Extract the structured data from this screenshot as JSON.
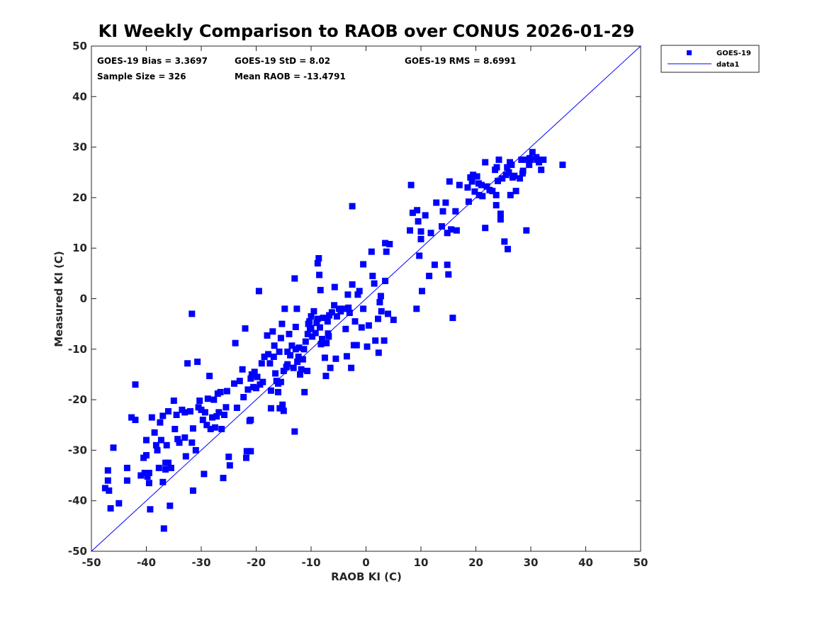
{
  "chart_data": {
    "type": "scatter",
    "title": "KI Weekly Comparison to RAOB over CONUS 2026-01-29",
    "xlabel": "RAOB KI (C)",
    "ylabel": "Measured KI (C)",
    "xlim": [
      -50,
      50
    ],
    "ylim": [
      -50,
      50
    ],
    "xticks": [
      "-50",
      "-40",
      "-30",
      "-20",
      "-10",
      "0",
      "10",
      "20",
      "30",
      "40",
      "50"
    ],
    "yticks": [
      "-50",
      "-40",
      "-30",
      "-20",
      "-10",
      "0",
      "10",
      "20",
      "30",
      "40",
      "50"
    ],
    "grid": false,
    "legend_position": "outside-top-right",
    "stats": {
      "bias": "GOES-19 Bias = 3.3697",
      "std": "GOES-19 StD = 8.02",
      "rms": "GOES-19 RMS = 8.6991",
      "sample_size": "Sample Size = 326",
      "mean_raob": "Mean RAOB = -13.4791"
    },
    "series": [
      {
        "name": "GOES-19",
        "type": "scatter",
        "marker": "square",
        "color": "#0000ff",
        "points": [
          [
            -47.5,
            -37.5
          ],
          [
            -47,
            -34
          ],
          [
            -47,
            -36
          ],
          [
            -46.8,
            -38
          ],
          [
            -46.5,
            -41.5
          ],
          [
            -46,
            -29.5
          ],
          [
            -45,
            -40.5
          ],
          [
            -43.5,
            -33.5
          ],
          [
            -43.5,
            -36
          ],
          [
            -42.7,
            -23.5
          ],
          [
            -42,
            -24
          ],
          [
            -42,
            -17
          ],
          [
            -41,
            -35
          ],
          [
            -40.5,
            -31.5
          ],
          [
            -40.3,
            -34.5
          ],
          [
            -40,
            -31
          ],
          [
            -40,
            -28
          ],
          [
            -39.8,
            -35.2
          ],
          [
            -39.5,
            -36.5
          ],
          [
            -39.5,
            -34.5
          ],
          [
            -39.3,
            -41.7
          ],
          [
            -39,
            -23.5
          ],
          [
            -38.5,
            -26.5
          ],
          [
            -38.2,
            -29
          ],
          [
            -38,
            -30
          ],
          [
            -37.7,
            -33.5
          ],
          [
            -37.5,
            -24.5
          ],
          [
            -37.3,
            -28
          ],
          [
            -37,
            -23.2
          ],
          [
            -37,
            -36.3
          ],
          [
            -36.8,
            -45.5
          ],
          [
            -36.5,
            -32.5
          ],
          [
            -36.5,
            -33.8
          ],
          [
            -36.3,
            -29
          ],
          [
            -36,
            -32.5
          ],
          [
            -36,
            -22.3
          ],
          [
            -35.7,
            -41
          ],
          [
            -35.5,
            -33.5
          ],
          [
            -35,
            -20.2
          ],
          [
            -34.8,
            -25.8
          ],
          [
            -34.5,
            -23
          ],
          [
            -34.3,
            -27.8
          ],
          [
            -34,
            -28.5
          ],
          [
            -33.5,
            -22
          ],
          [
            -33,
            -22.5
          ],
          [
            -33,
            -27.5
          ],
          [
            -32.8,
            -31.2
          ],
          [
            -32.5,
            -12.8
          ],
          [
            -32,
            -22.3
          ],
          [
            -31.7,
            -3
          ],
          [
            -31.7,
            -28.5
          ],
          [
            -31.5,
            -25.7
          ],
          [
            -31.5,
            -38
          ],
          [
            -31,
            -30
          ],
          [
            -30.7,
            -12.5
          ],
          [
            -30.5,
            -21.5
          ],
          [
            -30.3,
            -20.2
          ],
          [
            -30,
            -22
          ],
          [
            -29.7,
            -24
          ],
          [
            -29.5,
            -34.7
          ],
          [
            -29.3,
            -22.5
          ],
          [
            -29,
            -25
          ],
          [
            -28.8,
            -19.8
          ],
          [
            -28.5,
            -15.3
          ],
          [
            -28.3,
            -25.8
          ],
          [
            -28,
            -23.5
          ],
          [
            -27.7,
            -20
          ],
          [
            -27.5,
            -25.5
          ],
          [
            -27.2,
            -23.3
          ],
          [
            -27,
            -18.8
          ],
          [
            -26.8,
            -22.5
          ],
          [
            -26.5,
            -18.5
          ],
          [
            -26.3,
            -25.8
          ],
          [
            -26,
            -35.5
          ],
          [
            -25.8,
            -23
          ],
          [
            -25.5,
            -21.5
          ],
          [
            -25.3,
            -18.3
          ],
          [
            -25,
            -31.3
          ],
          [
            -24.8,
            -33
          ],
          [
            -24,
            -16.8
          ],
          [
            -23.8,
            -8.8
          ],
          [
            -23.5,
            -21.6
          ],
          [
            -23,
            -16.3
          ],
          [
            -22.5,
            -14
          ],
          [
            -22.3,
            -19.5
          ],
          [
            -22,
            -5.9
          ],
          [
            -21.8,
            -31.5
          ],
          [
            -21.7,
            -30.2
          ],
          [
            -21.5,
            -18
          ],
          [
            -21.2,
            -24.2
          ],
          [
            -21,
            -30.2
          ],
          [
            -21,
            -15.8
          ],
          [
            -21,
            -24
          ],
          [
            -20.8,
            -15
          ],
          [
            -20.5,
            -17.5
          ],
          [
            -20.3,
            -14.5
          ],
          [
            -20,
            -17.7
          ],
          [
            -19.8,
            -15.5
          ],
          [
            -19.5,
            1.5
          ],
          [
            -19.3,
            -17
          ],
          [
            -19,
            -12.8
          ],
          [
            -18.8,
            -16.5
          ],
          [
            -18.5,
            -11.5
          ],
          [
            -18,
            -7.3
          ],
          [
            -17.8,
            -11
          ],
          [
            -17.5,
            -12.8
          ],
          [
            -17.3,
            -21.7
          ],
          [
            -17.3,
            -18.2
          ],
          [
            -17,
            -6.5
          ],
          [
            -16.8,
            -11.5
          ],
          [
            -16.7,
            -9.3
          ],
          [
            -16.5,
            -14.8
          ],
          [
            -16.3,
            -16.3
          ],
          [
            -16,
            -18.5
          ],
          [
            -16,
            -16.8
          ],
          [
            -15.8,
            -10.5
          ],
          [
            -15.7,
            -21.7
          ],
          [
            -15.5,
            -7.8
          ],
          [
            -15.5,
            -16.5
          ],
          [
            -15.3,
            -5
          ],
          [
            -15.2,
            -21
          ],
          [
            -15,
            -22.2
          ],
          [
            -15,
            -14.3
          ],
          [
            -14.8,
            -2
          ],
          [
            -14.5,
            -13.5
          ],
          [
            -14.3,
            -10.5
          ],
          [
            -14.3,
            -13
          ],
          [
            -14,
            -7
          ],
          [
            -13.8,
            -11.2
          ],
          [
            -13.5,
            -9.3
          ],
          [
            -13.2,
            -13.7
          ],
          [
            -13,
            -26.3
          ],
          [
            -13,
            4
          ],
          [
            -12.8,
            -10
          ],
          [
            -12.8,
            -5.6
          ],
          [
            -12.6,
            -2
          ],
          [
            -12.5,
            -12.5
          ],
          [
            -12.3,
            -11.5
          ],
          [
            -12.2,
            -9.7
          ],
          [
            -12,
            -15
          ],
          [
            -11.8,
            -14
          ],
          [
            -11.5,
            -12
          ],
          [
            -11.3,
            -10
          ],
          [
            -11.2,
            -18.5
          ],
          [
            -11,
            -8.5
          ],
          [
            -10.7,
            -14.3
          ],
          [
            -10.6,
            -7
          ],
          [
            -10.5,
            -5
          ],
          [
            -10.3,
            -4.5
          ],
          [
            -10.2,
            -6
          ],
          [
            -10,
            -5.8
          ],
          [
            -10,
            -3.5
          ],
          [
            -9.8,
            -7.5
          ],
          [
            -9.5,
            -2.5
          ],
          [
            -9.2,
            -6.8
          ],
          [
            -9,
            -4.8
          ],
          [
            -8.8,
            -4
          ],
          [
            -8.8,
            7
          ],
          [
            -8.6,
            8
          ],
          [
            -8.5,
            4.7
          ],
          [
            -8.4,
            -5.7
          ],
          [
            -8.3,
            1.7
          ],
          [
            -8.2,
            -9
          ],
          [
            -8,
            -8
          ],
          [
            -7.8,
            -3.8
          ],
          [
            -7.5,
            -11.7
          ],
          [
            -7.3,
            -15.3
          ],
          [
            -7.2,
            -8.8
          ],
          [
            -7,
            -4.5
          ],
          [
            -6.9,
            -6.9
          ],
          [
            -6.8,
            -7.5
          ],
          [
            -6.7,
            -3.3
          ],
          [
            -6.5,
            -13.7
          ],
          [
            -6.2,
            -2.7
          ],
          [
            -5.8,
            -1.3
          ],
          [
            -5.7,
            2.3
          ],
          [
            -5.5,
            -11.9
          ],
          [
            -5.3,
            -3.5
          ],
          [
            -4.9,
            -2
          ],
          [
            -4.6,
            -2.5
          ],
          [
            -4,
            -2
          ],
          [
            -3.7,
            -6
          ],
          [
            -3.5,
            -11.4
          ],
          [
            -3.3,
            0.8
          ],
          [
            -3.2,
            -1.8
          ],
          [
            -3,
            -2.8
          ],
          [
            -2.7,
            -13.7
          ],
          [
            -2.5,
            18.3
          ],
          [
            -2.5,
            2.8
          ],
          [
            -2.2,
            -9.2
          ],
          [
            -2,
            -4.5
          ],
          [
            -1.7,
            -9.2
          ],
          [
            -1.5,
            0.8
          ],
          [
            -1.2,
            1.5
          ],
          [
            -0.8,
            -5.7
          ],
          [
            -0.5,
            6.8
          ],
          [
            -0.5,
            -2
          ],
          [
            0.2,
            -9.5
          ],
          [
            0.5,
            -5.3
          ],
          [
            1,
            9.3
          ],
          [
            1.2,
            4.5
          ],
          [
            1.5,
            3
          ],
          [
            1.7,
            -8.3
          ],
          [
            2.2,
            -4
          ],
          [
            2.3,
            -10.7
          ],
          [
            2.5,
            -0.7
          ],
          [
            2.7,
            0.5
          ],
          [
            2.8,
            -2.5
          ],
          [
            3.3,
            -8.3
          ],
          [
            3.5,
            3.5
          ],
          [
            3.5,
            11
          ],
          [
            3.7,
            9.3
          ],
          [
            4,
            -3
          ],
          [
            4.3,
            10.8
          ],
          [
            5,
            -4.2
          ],
          [
            8,
            13.5
          ],
          [
            8.2,
            22.5
          ],
          [
            8.5,
            17
          ],
          [
            9.2,
            -2
          ],
          [
            9.3,
            17.5
          ],
          [
            9.5,
            15.3
          ],
          [
            9.7,
            8.5
          ],
          [
            10,
            13.3
          ],
          [
            10,
            11.8
          ],
          [
            10.2,
            1.5
          ],
          [
            10.8,
            16.5
          ],
          [
            11.5,
            4.5
          ],
          [
            11.8,
            13
          ],
          [
            12.5,
            6.7
          ],
          [
            12.8,
            19
          ],
          [
            13.8,
            14.3
          ],
          [
            14,
            17.3
          ],
          [
            14.5,
            19
          ],
          [
            14.8,
            6.7
          ],
          [
            14.8,
            13
          ],
          [
            15,
            4.8
          ],
          [
            15.2,
            23.2
          ],
          [
            15.5,
            13.7
          ],
          [
            15.8,
            -3.8
          ],
          [
            16.3,
            17.3
          ],
          [
            16.5,
            13.5
          ],
          [
            17,
            22.5
          ],
          [
            18.5,
            22
          ],
          [
            18.7,
            19.2
          ],
          [
            19,
            24
          ],
          [
            19.3,
            23.2
          ],
          [
            19.5,
            24.5
          ],
          [
            19.8,
            21.2
          ],
          [
            20.2,
            24.2
          ],
          [
            20.5,
            22.8
          ],
          [
            20.6,
            20.5
          ],
          [
            21,
            22.5
          ],
          [
            21.2,
            20.3
          ],
          [
            21.7,
            14
          ],
          [
            21.7,
            27
          ],
          [
            22,
            22.2
          ],
          [
            22.5,
            21.5
          ],
          [
            23,
            21.3
          ],
          [
            23.5,
            25.5
          ],
          [
            23.7,
            20.5
          ],
          [
            23.7,
            18.5
          ],
          [
            23.8,
            26
          ],
          [
            24,
            23.3
          ],
          [
            24.2,
            27.5
          ],
          [
            24.5,
            16.8
          ],
          [
            24.5,
            15.7
          ],
          [
            24.8,
            23.8
          ],
          [
            25.2,
            11.3
          ],
          [
            25.5,
            24.5
          ],
          [
            25.7,
            26
          ],
          [
            25.8,
            9.8
          ],
          [
            26,
            25
          ],
          [
            26.2,
            27
          ],
          [
            26.3,
            20.5
          ],
          [
            26.5,
            26.5
          ],
          [
            26.7,
            24
          ],
          [
            27,
            24.3
          ],
          [
            27.3,
            21.3
          ],
          [
            28,
            23.8
          ],
          [
            28.3,
            27.5
          ],
          [
            28.5,
            24.8
          ],
          [
            28.6,
            25.3
          ],
          [
            29,
            27.5
          ],
          [
            29.2,
            13.5
          ],
          [
            29.7,
            26.5
          ],
          [
            29.8,
            27.8
          ],
          [
            30,
            27.5
          ],
          [
            30.3,
            29
          ],
          [
            31,
            28
          ],
          [
            31.2,
            27.5
          ],
          [
            31.5,
            27
          ],
          [
            31.9,
            25.5
          ],
          [
            32.3,
            27.5
          ],
          [
            35.8,
            26.5
          ]
        ]
      },
      {
        "name": "data1",
        "type": "line",
        "color": "#0000ff",
        "points": [
          [
            -50,
            -50
          ],
          [
            50,
            50
          ]
        ]
      }
    ]
  }
}
